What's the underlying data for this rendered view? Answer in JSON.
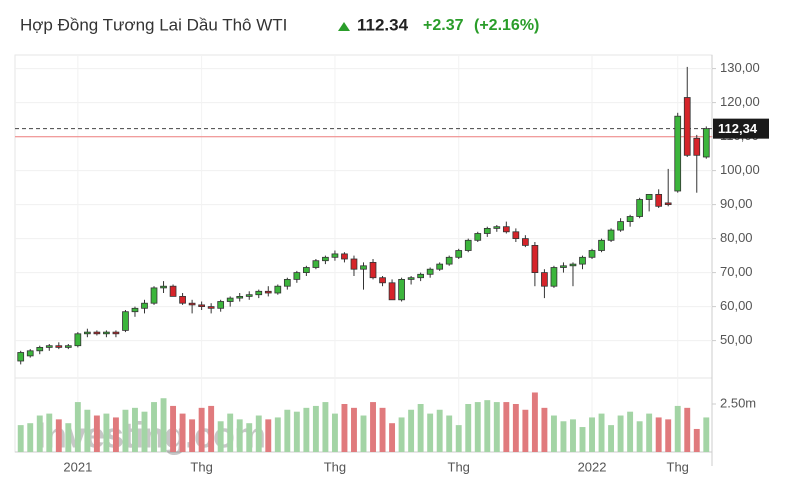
{
  "header": {
    "title": "Hợp Đồng Tương Lai Dầu Thô WTI",
    "price": "112.34",
    "change": "+2.37",
    "change_pct": "(+2.16%)"
  },
  "watermark": "Investing.com",
  "chart_data": {
    "type": "candlestick",
    "open": [
      44,
      45.5,
      47,
      48,
      48.5,
      48,
      48.5,
      52,
      52.5,
      52,
      52.5,
      53,
      58.5,
      59.5,
      61,
      65.5,
      66,
      63,
      61,
      60.5,
      60,
      59.5,
      61.5,
      62.5,
      63,
      63.5,
      64.5,
      64,
      66,
      68,
      70,
      71.5,
      73.5,
      74.5,
      75.5,
      74,
      71,
      73,
      68.5,
      67,
      62,
      68,
      68.5,
      69.5,
      71,
      72.5,
      74.5,
      76.5,
      79.5,
      81.5,
      83,
      83.5,
      82,
      80,
      78,
      70,
      66,
      71.5,
      72,
      72.5,
      74.5,
      76.5,
      79.5,
      82.5,
      85,
      86.5,
      91.5,
      93,
      90.5,
      94,
      121.5,
      109.5,
      104
    ],
    "high": [
      47,
      47.5,
      48.5,
      49,
      49.5,
      49,
      52.5,
      53.5,
      53,
      53,
      53,
      59,
      60,
      62,
      66,
      67.5,
      66.5,
      64,
      62,
      61.5,
      61,
      62,
      63,
      64,
      64.5,
      65,
      66,
      66.5,
      68.5,
      70.5,
      72,
      74,
      75,
      76.5,
      76,
      75,
      73,
      74,
      69,
      68,
      68.5,
      69,
      70,
      71.5,
      73,
      75,
      77,
      80,
      82,
      83.5,
      84,
      85,
      83,
      81,
      79,
      71,
      72,
      73,
      73,
      75,
      77,
      80,
      83,
      86,
      87,
      92,
      93,
      94.5,
      100.5,
      117,
      130.5,
      110.5,
      113
    ],
    "low": [
      43,
      45,
      46,
      47,
      47.5,
      47.5,
      48,
      51,
      51.5,
      51,
      51,
      52.5,
      57,
      58,
      60.5,
      64,
      63,
      60.5,
      58,
      59,
      58,
      58.5,
      60,
      61.5,
      62,
      62.5,
      63,
      63.5,
      65,
      67,
      69,
      71,
      72.5,
      73.5,
      73,
      69,
      65,
      68,
      66,
      62,
      61.5,
      66.5,
      67.5,
      68.5,
      70.5,
      72,
      74,
      76,
      79,
      80.5,
      82,
      81.5,
      79,
      77.5,
      66,
      62.5,
      65.5,
      70,
      66,
      71,
      74,
      76,
      79,
      82,
      83.5,
      86,
      88,
      89,
      89.5,
      93.5,
      104,
      93.5,
      103.5
    ],
    "close": [
      46.5,
      47,
      48,
      48.5,
      48,
      48.5,
      52,
      52.5,
      52,
      52.5,
      52,
      58.5,
      59.5,
      61,
      65.5,
      66,
      63,
      61,
      60.5,
      60,
      59.5,
      61.5,
      62.5,
      63,
      63.5,
      64.5,
      64,
      66,
      68,
      70,
      71.5,
      73.5,
      74.5,
      75.5,
      74,
      71,
      72,
      68.5,
      67,
      62,
      68,
      68.5,
      69.5,
      71,
      72.5,
      74.5,
      76.5,
      79.5,
      81.5,
      83,
      83.5,
      82,
      80,
      78,
      70,
      66,
      71.5,
      72,
      72.5,
      74.5,
      76.5,
      79.5,
      82.5,
      85,
      86.5,
      91.5,
      93,
      89.5,
      90,
      116,
      104.5,
      104.5,
      112.34
    ],
    "volume": [
      1.4,
      1.5,
      1.9,
      2.0,
      1.7,
      1.5,
      2.6,
      2.2,
      1.9,
      2.0,
      1.8,
      2.2,
      2.3,
      2.1,
      2.6,
      2.8,
      2.4,
      2.0,
      1.7,
      2.3,
      2.4,
      1.6,
      2.0,
      1.7,
      1.5,
      1.9,
      1.7,
      1.8,
      2.2,
      2.1,
      2.3,
      2.4,
      2.6,
      2.0,
      2.5,
      2.3,
      1.9,
      2.6,
      2.3,
      1.5,
      1.8,
      2.2,
      2.5,
      2.0,
      2.2,
      1.9,
      1.4,
      2.5,
      2.6,
      2.7,
      2.6,
      2.6,
      2.5,
      2.2,
      3.1,
      2.3,
      1.9,
      1.6,
      1.7,
      1.3,
      1.8,
      2.0,
      1.4,
      1.9,
      2.1,
      1.6,
      2.0,
      1.8,
      1.7,
      2.4,
      2.3,
      1.2,
      1.8
    ],
    "up_color": "#3cb53c",
    "down_color": "#d6242a",
    "up_volume_color": "#a3d4a5",
    "down_volume_color": "#e07a7d",
    "xlim": [
      -0.6,
      72.6
    ],
    "xticks": [
      {
        "value": 6,
        "label": "2021"
      },
      {
        "value": 19,
        "label": "Thg"
      },
      {
        "value": 33,
        "label": "Thg"
      },
      {
        "value": 46,
        "label": "Thg"
      },
      {
        "value": 60,
        "label": "2022"
      },
      {
        "value": 69,
        "label": "Thg"
      }
    ],
    "ylim": [
      39,
      134
    ],
    "yticks": [
      {
        "value": 50,
        "label": "50,00"
      },
      {
        "value": 60,
        "label": "60,00"
      },
      {
        "value": 70,
        "label": "70,00"
      },
      {
        "value": 80,
        "label": "80,00"
      },
      {
        "value": 90,
        "label": "90,00"
      },
      {
        "value": 100,
        "label": "100,00"
      },
      {
        "value": 110,
        "label": "110,00"
      },
      {
        "value": 120,
        "label": "120,00"
      },
      {
        "value": 130,
        "label": "130,00"
      }
    ],
    "y2lim": [
      0,
      3.75
    ],
    "y2ticks": [
      {
        "value": 2.5,
        "label": "2.50m"
      }
    ],
    "last_price": {
      "value": 112.34,
      "label": "112,34"
    },
    "prev_close": 109.97,
    "grid": true
  }
}
